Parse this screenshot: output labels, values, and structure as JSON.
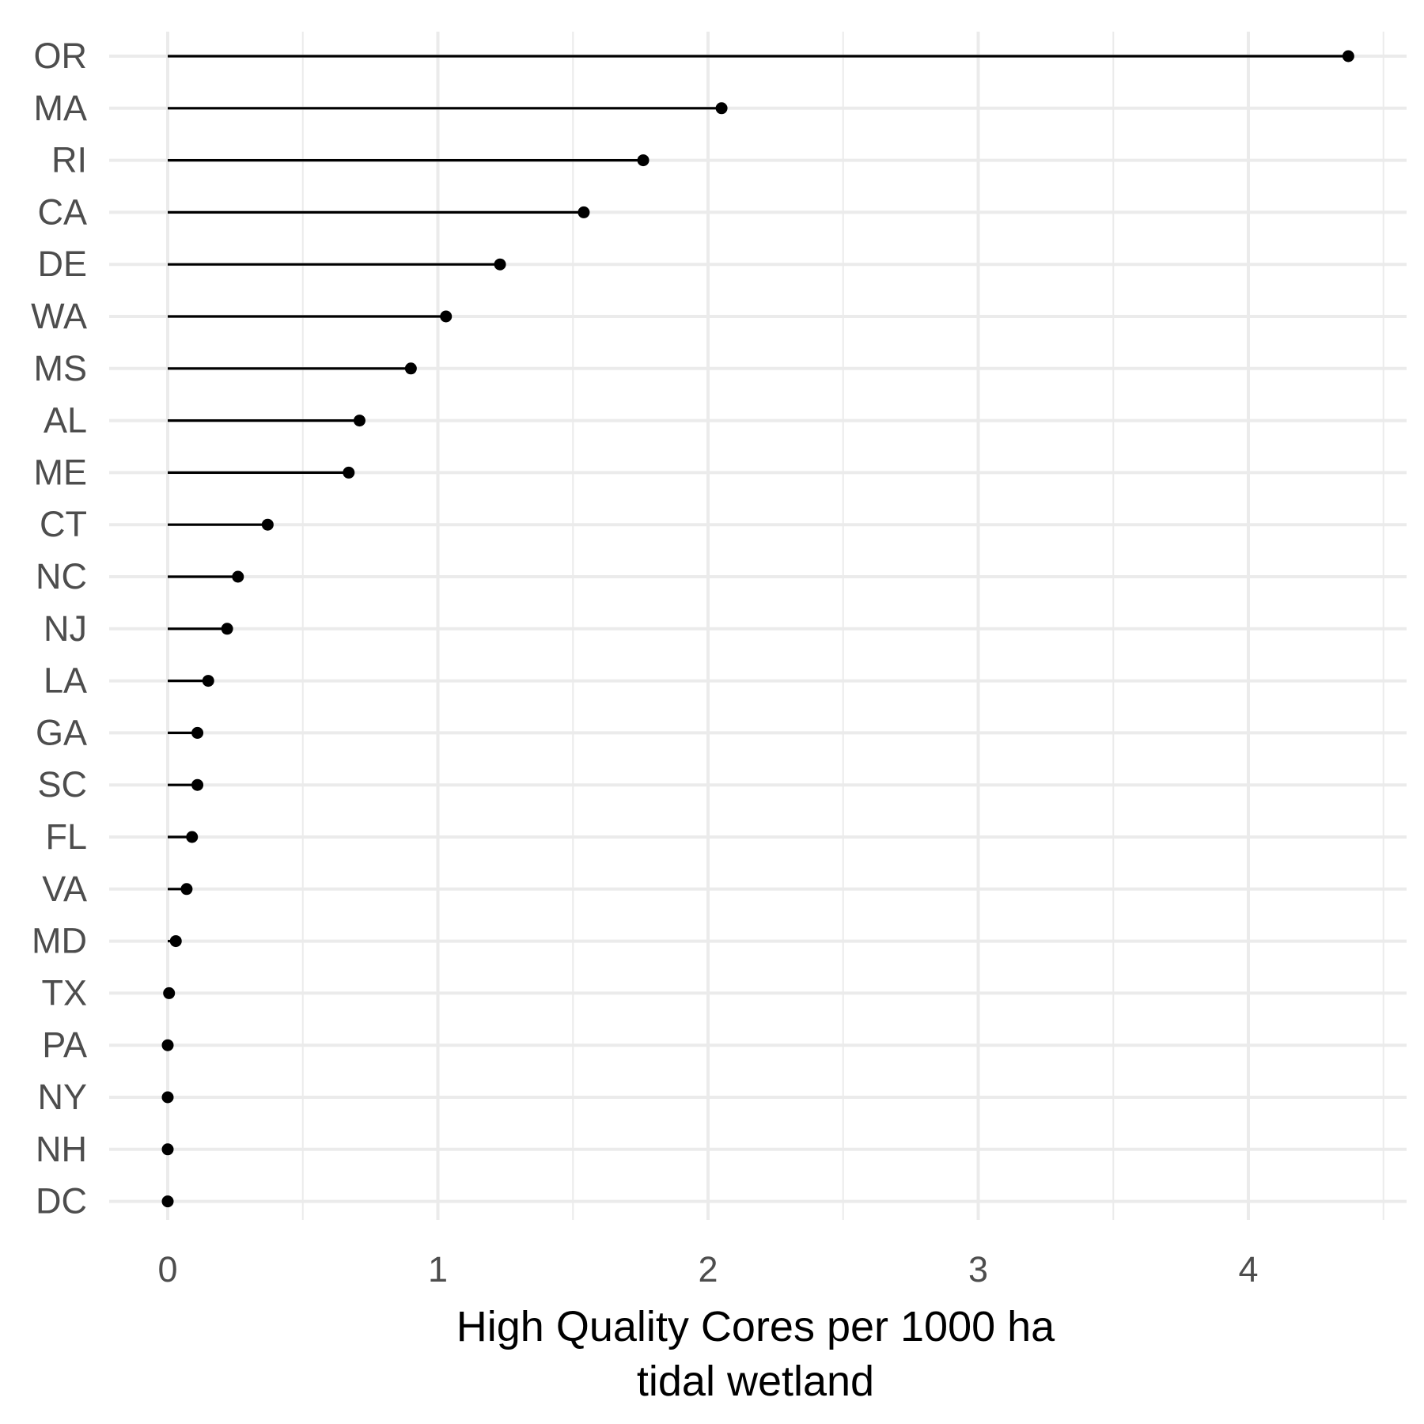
{
  "chart_data": {
    "type": "lollipop",
    "orientation": "horizontal",
    "categories": [
      "OR",
      "MA",
      "RI",
      "CA",
      "DE",
      "WA",
      "MS",
      "AL",
      "ME",
      "CT",
      "NC",
      "NJ",
      "LA",
      "GA",
      "SC",
      "FL",
      "VA",
      "MD",
      "TX",
      "PA",
      "NY",
      "NH",
      "DC"
    ],
    "values": [
      4.37,
      2.05,
      1.76,
      1.54,
      1.23,
      1.03,
      0.9,
      0.71,
      0.67,
      0.37,
      0.26,
      0.22,
      0.15,
      0.11,
      0.11,
      0.09,
      0.07,
      0.03,
      0.005,
      0.0,
      0.0,
      0.0,
      0.0
    ],
    "xlabel_lines": [
      "High Quality Cores per 1000 ha",
      "tidal wetland"
    ],
    "ylabel": "",
    "title": "",
    "xlim": [
      -0.22,
      4.6
    ],
    "xticks": [
      0,
      1,
      2,
      3,
      4
    ],
    "xtick_labels": [
      "0",
      "1",
      "2",
      "3",
      "4"
    ],
    "grid": true,
    "legend": "none",
    "colors": {
      "mark": "#000000",
      "grid": "#ebebeb",
      "tick_text": "#4d4d4d"
    }
  }
}
